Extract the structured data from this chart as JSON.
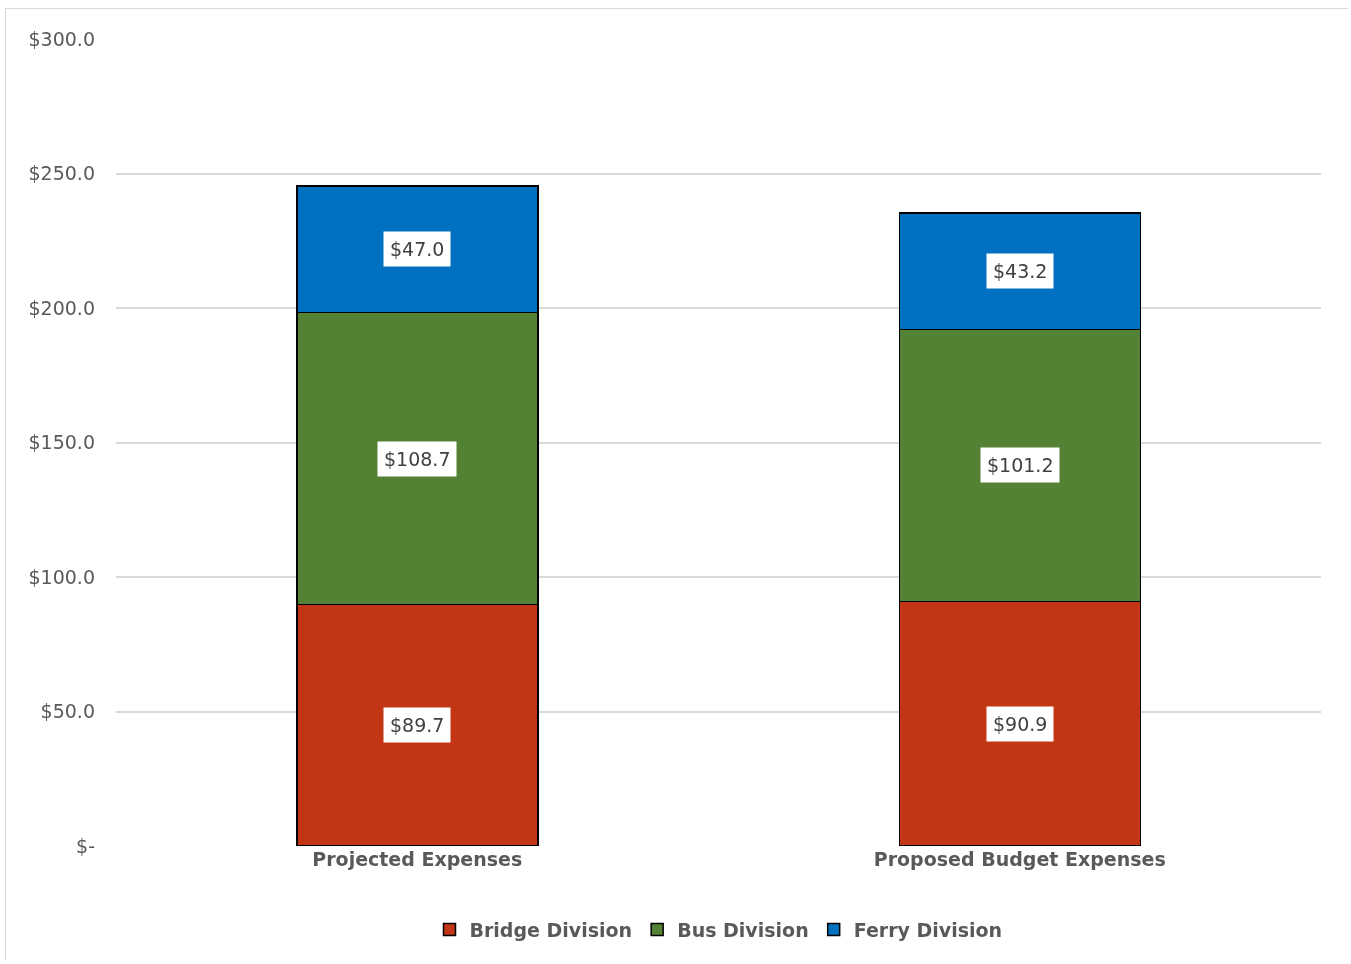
{
  "chart_data": {
    "type": "bar",
    "stacked": true,
    "categories": [
      "Projected Expenses",
      "Proposed Budget Expenses"
    ],
    "series": [
      {
        "name": "Bridge Division",
        "color": "#c23616",
        "values": [
          89.7,
          90.9
        ],
        "value_labels": [
          "$89.7",
          "$90.9"
        ]
      },
      {
        "name": "Bus Division",
        "color": "#548235",
        "values": [
          108.7,
          101.2
        ],
        "value_labels": [
          "$108.7",
          "$101.2"
        ]
      },
      {
        "name": "Ferry Division",
        "color": "#0070c0",
        "values": [
          47.0,
          43.2
        ],
        "value_labels": [
          "$47.0",
          "$43.2"
        ]
      }
    ],
    "ylim": [
      0,
      300
    ],
    "yticks": [
      {
        "value": 0,
        "label": "$-"
      },
      {
        "value": 50,
        "label": "$50.0"
      },
      {
        "value": 100,
        "label": "$100.0"
      },
      {
        "value": 150,
        "label": "$150.0"
      },
      {
        "value": 200,
        "label": "$200.0"
      },
      {
        "value": 250,
        "label": "$250.0"
      },
      {
        "value": 300,
        "label": "$300.0"
      }
    ],
    "grid": "y",
    "legend": "bottom"
  }
}
